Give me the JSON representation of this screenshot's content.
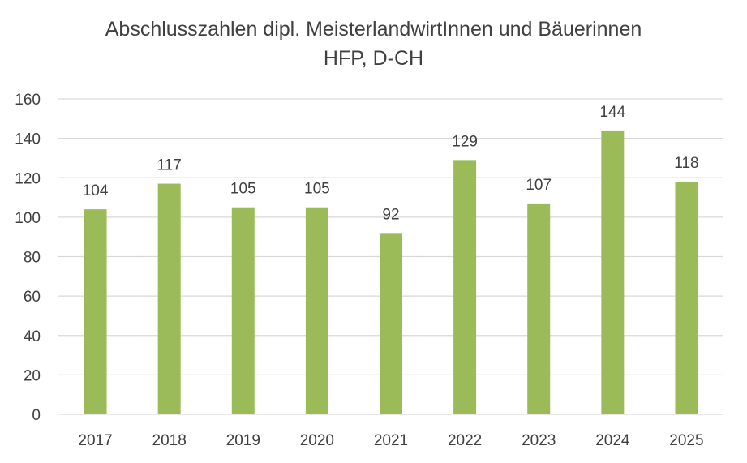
{
  "chart_data": {
    "type": "bar",
    "title_line1": "Abschlusszahlen dipl. MeisterlandwirtInnen und Bäuerinnen",
    "title_line2": "HFP, D-CH",
    "categories": [
      "2017",
      "2018",
      "2019",
      "2020",
      "2021",
      "2022",
      "2023",
      "2024",
      "2025"
    ],
    "values": [
      104,
      117,
      105,
      105,
      92,
      129,
      107,
      144,
      118
    ],
    "ylim": [
      0,
      160
    ],
    "yticks": [
      0,
      20,
      40,
      60,
      80,
      100,
      120,
      140,
      160
    ],
    "grid": true,
    "bar_color": "#9bbb59",
    "grid_color": "#d9d9d9",
    "data_labels": true
  }
}
